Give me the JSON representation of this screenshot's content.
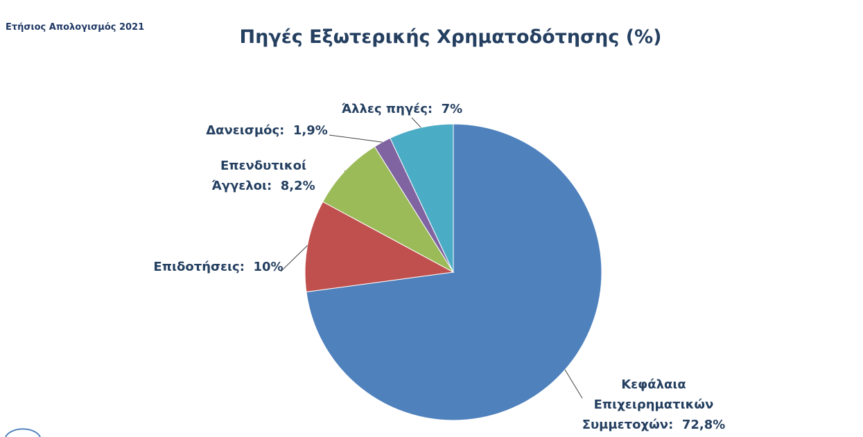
{
  "header": {
    "text": "Ετήσιος Απολογισμός 2021"
  },
  "chart_data": {
    "type": "pie",
    "title": "Πηγές Εξωτερικής Χρηματοδότησης (%)",
    "categories": [
      "Κεφάλαια Επιχειρηματικών Συμμετοχών",
      "Επιδοτήσεις",
      "Επενδυτικοί Άγγελοι",
      "Δανεισμός",
      "Άλλες πηγές"
    ],
    "values": [
      72.8,
      10,
      8.2,
      1.9,
      7
    ],
    "value_labels": [
      "72,8%",
      "10%",
      "8,2%",
      "1,9%",
      "7%"
    ],
    "label_separator": ":",
    "colors": [
      "#4f81bd",
      "#c0504d",
      "#9bbb59",
      "#8064a2",
      "#4bacc6"
    ]
  }
}
